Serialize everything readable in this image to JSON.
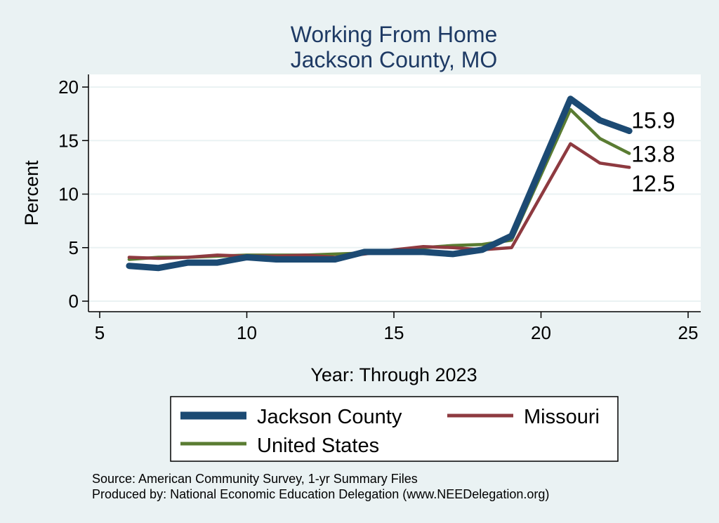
{
  "chart_data": {
    "type": "line",
    "title": [
      "Working From Home",
      "Jackson County, MO"
    ],
    "xlabel": "Year: Through 2023",
    "ylabel": "Percent",
    "xlim": [
      5,
      25
    ],
    "ylim": [
      0,
      20
    ],
    "xticks": [
      "5",
      "10",
      "15",
      "20",
      "25"
    ],
    "yticks": [
      "0",
      "5",
      "10",
      "15",
      "20"
    ],
    "grid": "horizontal",
    "legend_position": "bottom",
    "series": [
      {
        "name": "Jackson County",
        "color": "#1c4a73",
        "x": [
          6,
          7,
          8,
          9,
          10,
          11,
          12,
          13,
          14,
          15,
          16,
          17,
          18,
          19,
          21,
          22,
          23
        ],
        "values": [
          3.3,
          3.1,
          3.6,
          3.6,
          4.1,
          3.9,
          3.9,
          3.9,
          4.6,
          4.6,
          4.6,
          4.4,
          4.8,
          6.1,
          18.9,
          16.9,
          15.9
        ],
        "end_label": "15.9"
      },
      {
        "name": "Missouri",
        "color": "#8e3a40",
        "x": [
          6,
          7,
          8,
          9,
          10,
          11,
          12,
          13,
          14,
          15,
          16,
          17,
          18,
          19,
          21,
          22,
          23
        ],
        "values": [
          4.1,
          4.0,
          4.1,
          4.3,
          4.2,
          4.2,
          4.3,
          4.1,
          4.4,
          4.8,
          5.1,
          5.0,
          4.8,
          5.0,
          14.7,
          12.9,
          12.5
        ],
        "end_label": "12.5"
      },
      {
        "name": "United States",
        "color": "#5a7c32",
        "x": [
          6,
          7,
          8,
          9,
          10,
          11,
          12,
          13,
          14,
          15,
          16,
          17,
          18,
          19,
          21,
          22,
          23
        ],
        "values": [
          3.9,
          4.1,
          4.1,
          4.2,
          4.3,
          4.3,
          4.3,
          4.4,
          4.5,
          4.6,
          5.0,
          5.2,
          5.3,
          5.7,
          17.9,
          15.2,
          13.8
        ],
        "end_label": "13.8"
      }
    ],
    "source_lines": [
      "Source: American Community Survey, 1-yr Summary Files",
      "Produced by: National Economic Education Delegation (www.NEEDelegation.org)"
    ]
  }
}
